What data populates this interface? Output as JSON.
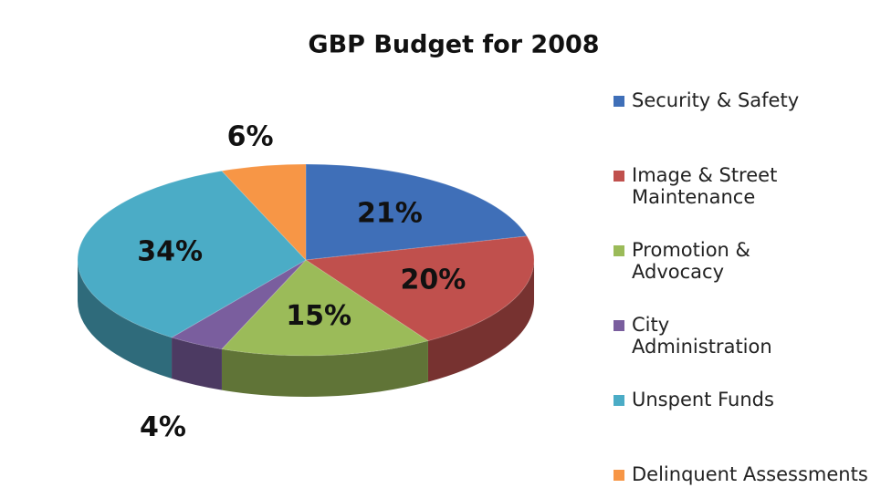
{
  "chart_data": {
    "type": "pie3d",
    "title": "GBP Budget for 2008",
    "categories": [
      "Security & Safety",
      "Image & Street Maintenance",
      "Promotion & Advocacy",
      "City Administration",
      "Unspent Funds",
      "Delinquent Assessments"
    ],
    "values": [
      21,
      20,
      15,
      4,
      34,
      6
    ],
    "value_labels": [
      "21%",
      "20%",
      "15%",
      "4%",
      "34%",
      "6%"
    ],
    "colors": [
      "#3f6fb8",
      "#c0504d",
      "#9bbb59",
      "#7a5e9e",
      "#4bacc6",
      "#f79646"
    ],
    "legend": "right"
  }
}
